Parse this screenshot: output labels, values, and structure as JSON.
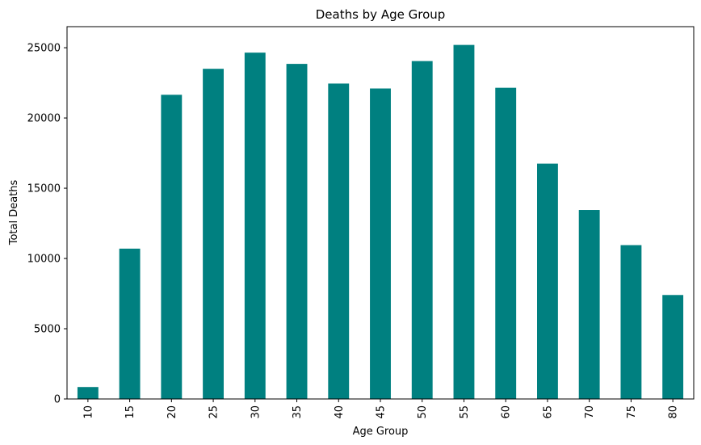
{
  "chart_data": {
    "type": "bar",
    "title": "Deaths by Age Group",
    "xlabel": "Age Group",
    "ylabel": "Total Deaths",
    "categories": [
      "10",
      "15",
      "20",
      "25",
      "30",
      "35",
      "40",
      "45",
      "50",
      "55",
      "60",
      "65",
      "70",
      "75",
      "80"
    ],
    "values": [
      850,
      10700,
      21650,
      23500,
      24650,
      23850,
      22450,
      22100,
      24050,
      25200,
      22150,
      16750,
      13450,
      10950,
      7400
    ],
    "yticks": [
      0,
      5000,
      10000,
      15000,
      20000,
      25000
    ],
    "ylim": [
      0,
      26500
    ],
    "grid": false,
    "bar_color": "#008080"
  }
}
